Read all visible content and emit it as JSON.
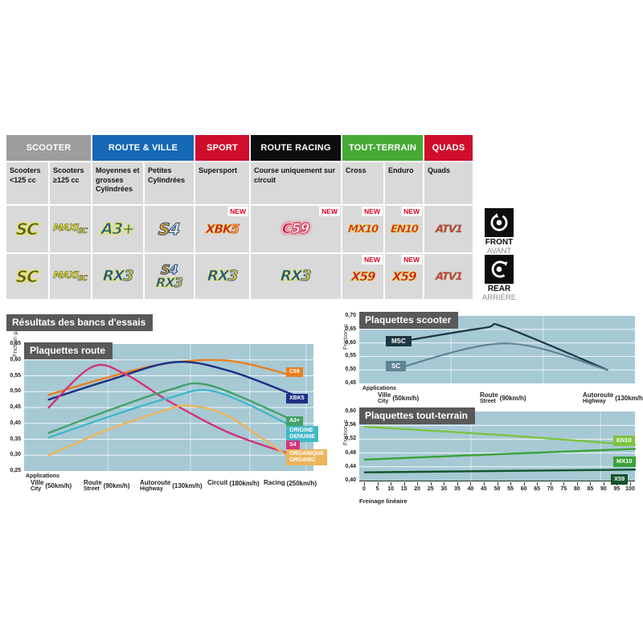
{
  "table": {
    "new_label": "NEW",
    "groups": [
      {
        "label": "SCOOTER",
        "color": "#9c9c9c"
      },
      {
        "label": "ROUTE & VILLE",
        "color": "#1568b4"
      },
      {
        "label": "SPORT",
        "color": "#d00d2c"
      },
      {
        "label": "ROUTE RACING",
        "color": "#0d0d0d"
      },
      {
        "label": "TOUT-TERRAIN",
        "color": "#46aa35"
      },
      {
        "label": "QUADS",
        "color": "#d00d2c"
      }
    ],
    "subheaders": [
      "Scooters <125 cc",
      "Scooters ≥125 cc",
      "Moyennes et grosses Cylindrées",
      "Petites Cylindrées",
      "Supersport",
      "Course uniquement sur circuit",
      "Cross",
      "Enduro",
      "Quads"
    ]
  },
  "logos": {
    "sc": "SC",
    "maxi": "MAXI",
    "maxi_sub": "SC",
    "a3": "A3+",
    "s4_s": "S",
    "s4_4": "4",
    "xbk": "XBK",
    "xbk_5": "5",
    "c59_c": "C",
    "c59_59": "59",
    "mx10": "MX10",
    "en10": "EN10",
    "atv1": "ATV1",
    "rx": "RX",
    "rx_3": "3",
    "x59": "X59"
  },
  "axles": {
    "front": {
      "label": "FRONT",
      "sub": "AVANT"
    },
    "rear": {
      "label": "REAR",
      "sub": "ARRIÈRE"
    }
  },
  "section_title": "Résultats des bancs d'essais",
  "chart_data": [
    {
      "type": "line",
      "title": "Plaquettes route",
      "ylabel": "Friction µ",
      "xlabel": "Applications",
      "ylim": [
        0.25,
        0.65
      ],
      "yticks": [
        "0,65",
        "0,60",
        "0,55",
        "0,50",
        "0,45",
        "0,40",
        "0,35",
        "0,30",
        "0,25"
      ],
      "vgrid": [
        0.29,
        0.575,
        0.78,
        0.975
      ],
      "grid": "on",
      "legend_position": "right",
      "lw": 2.4,
      "xcats": [
        {
          "fr": "Ville",
          "en": "City",
          "speed": "(50km/h)"
        },
        {
          "fr": "Route",
          "en": "Street",
          "speed": "(90km/h)"
        },
        {
          "fr": "Autoroute",
          "en": "Highway",
          "speed": "(130km/h)"
        },
        {
          "fr": "Circuit",
          "en": "",
          "speed": "(180km/h)"
        },
        {
          "fr": "Racing",
          "en": "",
          "speed": "(250km/h)"
        }
      ],
      "series": [
        {
          "name": "C59",
          "color": "#e8801e",
          "points": [
            [
              0.085,
              0.49
            ],
            [
              0.29,
              0.545
            ],
            [
              0.5,
              0.59
            ],
            [
              0.71,
              0.597
            ],
            [
              0.93,
              0.55
            ]
          ]
        },
        {
          "name": "XBK5",
          "color": "#1c2f85",
          "points": [
            [
              0.085,
              0.475
            ],
            [
              0.29,
              0.535
            ],
            [
              0.52,
              0.593
            ],
            [
              0.71,
              0.565
            ],
            [
              0.93,
              0.49
            ]
          ]
        },
        {
          "name": "S4",
          "color": "#d2347e",
          "points": [
            [
              0.085,
              0.45
            ],
            [
              0.235,
              0.578
            ],
            [
              0.35,
              0.555
            ],
            [
              0.5,
              0.47
            ],
            [
              0.71,
              0.37
            ],
            [
              0.93,
              0.3
            ]
          ]
        },
        {
          "name": "A3+",
          "color": "#44a168",
          "points": [
            [
              0.085,
              0.37
            ],
            [
              0.29,
              0.44
            ],
            [
              0.5,
              0.505
            ],
            [
              0.64,
              0.52
            ],
            [
              0.93,
              0.41
            ]
          ]
        },
        {
          "name": "ORIGINE / GENUINE",
          "color": "#41b8c6",
          "points": [
            [
              0.085,
              0.355
            ],
            [
              0.29,
              0.42
            ],
            [
              0.5,
              0.48
            ],
            [
              0.66,
              0.5
            ],
            [
              0.93,
              0.39
            ]
          ]
        },
        {
          "name": "ORGANIQUE / ORGANIC",
          "color": "#ecb45c",
          "points": [
            [
              0.085,
              0.3
            ],
            [
              0.29,
              0.38
            ],
            [
              0.5,
              0.445
            ],
            [
              0.58,
              0.455
            ],
            [
              0.71,
              0.42
            ],
            [
              0.93,
              0.285
            ]
          ]
        }
      ],
      "legend": [
        {
          "l1": "C59"
        },
        {
          "l1": "XBK5"
        },
        {
          "l1": "A3+"
        },
        {
          "l1": "ORIGINE",
          "l2": "GENUINE"
        },
        {
          "l1": "S4"
        },
        {
          "l1": "ORGANIQUE",
          "l2": "ORGANIC"
        }
      ]
    },
    {
      "type": "line",
      "title": "Plaquettes scooter",
      "ylabel": "Friction µ",
      "xlabel": "Applications",
      "ylim": [
        0.45,
        0.7
      ],
      "yticks": [
        "0,70",
        "0,65",
        "0,60",
        "0,55",
        "0,50",
        "0,45"
      ],
      "vgrid": [
        0.333,
        0.667
      ],
      "grid": "on",
      "legend_position": "left",
      "lw": 2.2,
      "xcats": [
        {
          "fr": "Ville",
          "en": "City",
          "speed": "(50km/h)"
        },
        {
          "fr": "Route",
          "en": "Street",
          "speed": "(90km/h)"
        },
        {
          "fr": "Autoroute",
          "en": "Highway",
          "speed": "(130km/h)"
        }
      ],
      "series": [
        {
          "name": "MSC",
          "color": "#1d3742",
          "points": [
            [
              0.12,
              0.6
            ],
            [
              0.45,
              0.655
            ],
            [
              0.53,
              0.657
            ],
            [
              0.9,
              0.5
            ]
          ]
        },
        {
          "name": "SC",
          "color": "#5f8494",
          "points": [
            [
              0.12,
              0.5
            ],
            [
              0.53,
              0.598
            ],
            [
              0.9,
              0.5
            ]
          ]
        }
      ],
      "legend": [
        {
          "l1": "MSC"
        },
        {
          "l1": "SC"
        }
      ]
    },
    {
      "type": "line",
      "title": "Plaquettes tout-terrain",
      "ylabel": "Friction µ",
      "xlabel": "Freinage linéaire",
      "ylim": [
        0.4,
        0.6
      ],
      "yticks": [
        "0,60",
        "0,56",
        "0,52",
        "0,48",
        "0,44",
        "0,40"
      ],
      "vgrid": [
        0.405,
        0.875
      ],
      "grid": "on",
      "legend_position": "right",
      "lw": 2.4,
      "xticks": [
        "0",
        "5",
        "10",
        "15",
        "20",
        "25",
        "30",
        "35",
        "40",
        "45",
        "50",
        "55",
        "60",
        "65",
        "70",
        "75",
        "80",
        "85",
        "90",
        "95",
        "100"
      ],
      "series": [
        {
          "name": "EN10",
          "color": "#7cc340",
          "points": [
            [
              0.02,
              0.556
            ],
            [
              0.55,
              0.53
            ],
            [
              1.0,
              0.503
            ]
          ]
        },
        {
          "name": "MX10",
          "color": "#3aa237",
          "points": [
            [
              0.02,
              0.461
            ],
            [
              0.55,
              0.478
            ],
            [
              1.0,
              0.492
            ]
          ]
        },
        {
          "name": "X59",
          "color": "#14532d",
          "points": [
            [
              0.02,
              0.424
            ],
            [
              1.0,
              0.432
            ]
          ]
        }
      ],
      "legend": [
        {
          "l1": "EN10"
        },
        {
          "l1": "MX10"
        },
        {
          "l1": "X59"
        }
      ]
    }
  ]
}
